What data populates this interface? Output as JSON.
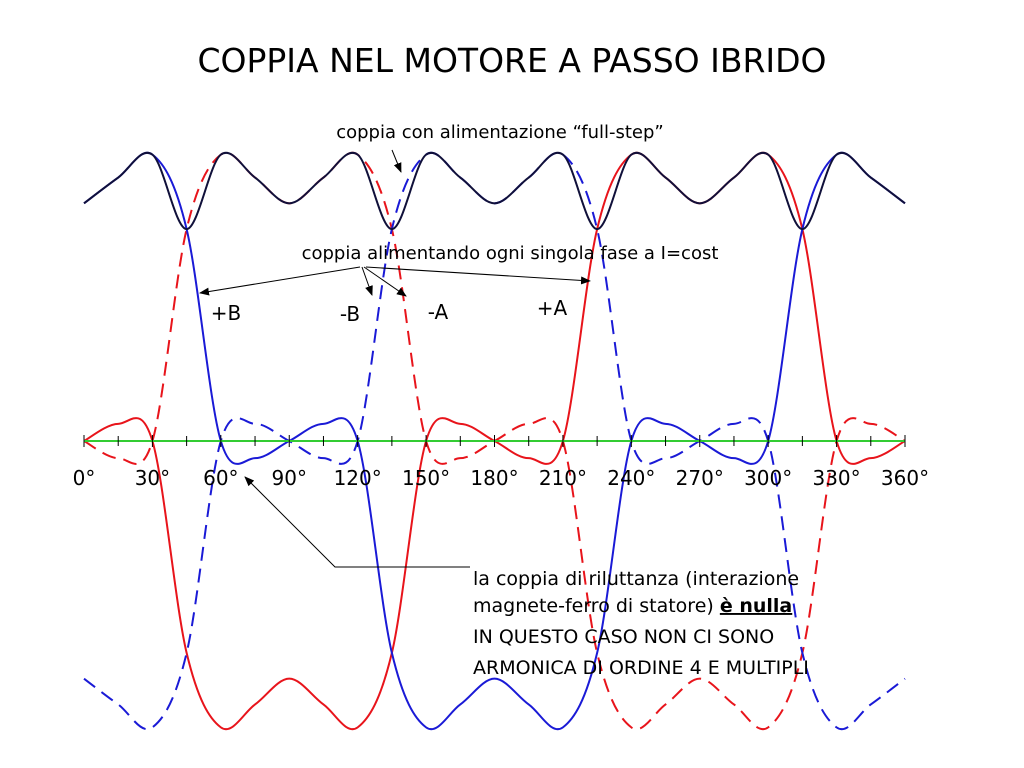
{
  "chart_data": {
    "type": "line",
    "title": "COPPIA NEL MOTORE A PASSO IBRIDO",
    "x": [
      0,
      15,
      30,
      45,
      60,
      75,
      90,
      105,
      120,
      135,
      150,
      165,
      180,
      195,
      210,
      225,
      240,
      255,
      270,
      285,
      300,
      315,
      330,
      345,
      360
    ],
    "xlim": [
      0,
      360
    ],
    "ylim": [
      -1.1,
      1.1
    ],
    "xticks": [
      {
        "value": 0,
        "label": "0°"
      },
      {
        "value": 30,
        "label": "30°"
      },
      {
        "value": 60,
        "label": "60°"
      },
      {
        "value": 90,
        "label": "90°"
      },
      {
        "value": 120,
        "label": "120°"
      },
      {
        "value": 150,
        "label": "150°"
      },
      {
        "value": 180,
        "label": "180°"
      },
      {
        "value": 210,
        "label": "210°"
      },
      {
        "value": 240,
        "label": "240°"
      },
      {
        "value": 270,
        "label": "270°"
      },
      {
        "value": 300,
        "label": "300°"
      },
      {
        "value": 330,
        "label": "330°"
      },
      {
        "value": 360,
        "label": "360°"
      }
    ],
    "xticks_minor": [
      15,
      45,
      75,
      105,
      135,
      165,
      195,
      225,
      255,
      285,
      315,
      345
    ],
    "axis_color": "#33cc33",
    "series": [
      {
        "name": "+A",
        "color": "#e8141b",
        "dashed": false,
        "values": [
          0,
          0.06,
          0,
          -0.74,
          -1,
          -0.92,
          -0.83,
          -0.92,
          -1,
          -0.74,
          0,
          0.06,
          0,
          -0.06,
          0,
          0.74,
          1,
          0.92,
          0.83,
          0.92,
          1,
          0.74,
          0,
          -0.06,
          0
        ]
      },
      {
        "name": "-A",
        "color": "#e8141b",
        "dashed": true,
        "values": [
          0,
          -0.06,
          0,
          0.74,
          1,
          0.92,
          0.83,
          0.92,
          1,
          0.74,
          0,
          -0.06,
          0,
          0.06,
          0,
          -0.74,
          -1,
          -0.92,
          -0.83,
          -0.92,
          -1,
          -0.74,
          0,
          0.06,
          0
        ]
      },
      {
        "name": "+B",
        "color": "#1a1ad6",
        "dashed": false,
        "values": [
          0.83,
          0.92,
          1,
          0.74,
          0,
          -0.06,
          0,
          0.06,
          0,
          -0.74,
          -1,
          -0.92,
          -0.83,
          -0.92,
          -1,
          -0.74,
          0,
          0.06,
          0,
          -0.06,
          0,
          0.74,
          1,
          0.92,
          0.83
        ]
      },
      {
        "name": "-B",
        "color": "#1a1ad6",
        "dashed": true,
        "values": [
          -0.83,
          -0.92,
          -1,
          -0.74,
          0,
          0.06,
          0,
          -0.06,
          0,
          0.74,
          1,
          0.92,
          0.83,
          0.92,
          1,
          0.74,
          0,
          -0.06,
          0,
          0.06,
          0,
          -0.74,
          -1,
          -0.92,
          -0.83
        ]
      },
      {
        "color": "#10103a",
        "dashed": false,
        "values": [
          0.83,
          0.92,
          1,
          0.74,
          1,
          0.92,
          0.83,
          0.92,
          1,
          0.74,
          1,
          0.92,
          0.83,
          0.92,
          1,
          0.74,
          1,
          0.92,
          0.83,
          0.92,
          1,
          0.74,
          1,
          0.92,
          0.83
        ]
      }
    ],
    "annotations": {
      "full_step": "coppia con alimentazione “full-step”",
      "single_phase": "coppia alimentando ogni singola fase a I=cost",
      "note": [
        "la coppia di riluttanza (interazione",
        "magnete-ferro di statore) ",
        "è nulla",
        "IN QUESTO CASO NON CI SONO",
        "ARMONICA DI ORDINE 4 E MULTIPLI"
      ]
    }
  }
}
